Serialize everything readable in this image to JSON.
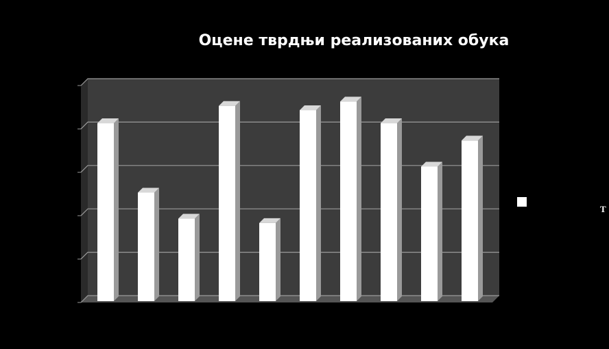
{
  "chart_data": {
    "type": "bar",
    "title": "Оцене тврдњи реализованих обука",
    "categories": [
      null,
      null,
      null,
      null,
      null,
      null,
      null,
      null,
      null,
      null
    ],
    "series": [
      {
        "name": "Т",
        "color": "#ffffff",
        "values": [
          4.1,
          2.5,
          1.9,
          4.5,
          1.8,
          4.4,
          4.6,
          4.1,
          3.1,
          3.7
        ]
      }
    ],
    "ylim": [
      0,
      5
    ],
    "yticks": [
      0,
      1,
      2,
      3,
      4,
      5
    ],
    "grid": true
  }
}
